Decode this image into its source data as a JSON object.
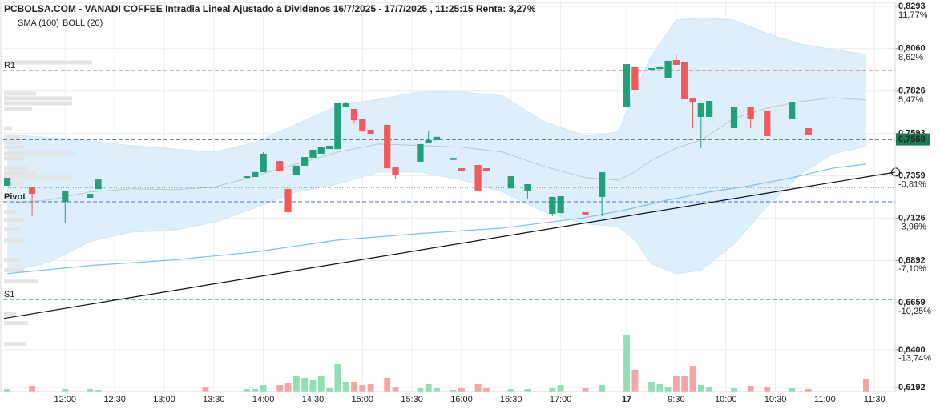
{
  "chart_data": {
    "type": "candlestick",
    "title": "PCBOLSA.COM - VANADI COFFEE Intradia Lineal Ajustado a Dividenos 16/7/2025 - 17/7/2025 , 11:25:15 Renta: 3,27%",
    "categories": [
      null,
      null,
      null,
      null,
      null,
      null,
      null,
      "12:00",
      null,
      null,
      null,
      null,
      null,
      "12:30",
      null,
      null,
      null,
      null,
      null,
      "13:00",
      null,
      null,
      null,
      null,
      null,
      "13:30",
      null,
      null,
      null,
      null,
      null,
      "14:00",
      null,
      null,
      null,
      null,
      null,
      "14:30",
      null,
      null,
      null,
      null,
      null,
      "15:00",
      null,
      null,
      null,
      null,
      null,
      "15:30",
      null,
      null,
      null,
      null,
      null,
      "16:00",
      null,
      null,
      null,
      null,
      null,
      "16:30",
      null,
      null,
      null,
      null,
      null,
      "17:00",
      null,
      null,
      null,
      null,
      null,
      null,
      null,
      "17",
      null,
      null,
      null,
      null,
      null,
      "9:30",
      null,
      null,
      null,
      null,
      null,
      "10:00",
      null,
      null,
      null,
      null,
      null,
      "10:30",
      null,
      null,
      null,
      null,
      null,
      "11:00",
      null,
      null,
      null,
      null,
      null,
      "11:30",
      null,
      null
    ],
    "open": [
      0.7304,
      null,
      null,
      0.7295,
      null,
      null,
      null,
      0.7216,
      null,
      null,
      0.7238,
      0.7286,
      null,
      null,
      null,
      null,
      null,
      null,
      null,
      null,
      null,
      null,
      null,
      null,
      null,
      null,
      null,
      null,
      null,
      0.7348,
      0.7353,
      0.7379,
      null,
      0.7441,
      0.7287,
      0.7362,
      0.7415,
      0.7459,
      0.7481,
      0.7507,
      0.7507,
      0.7741,
      0.7728,
      0.7675,
      0.7613,
      null,
      0.764,
      0.7406,
      null,
      null,
      0.7437,
      0.7538,
      0.7556,
      null,
      0.7447,
      0.7401,
      null,
      0.7419,
      0.7401,
      null,
      null,
      0.729,
      null,
      0.7278,
      null,
      null,
      0.715,
      0.7154,
      null,
      null,
      0.7159,
      null,
      0.7243,
      null,
      null,
      0.7741,
      0.7958,
      null,
      0.7944,
      0.7948,
      0.79,
      0.7997,
      0.7988,
      0.7785,
      0.7684,
      0.7684,
      null,
      null,
      0.7622,
      null,
      0.7737,
      null,
      0.7719,
      null,
      null,
      0.7675,
      null,
      0.7622,
      null,
      null,
      null,
      null,
      null,
      null,
      null,
      null,
      null,
      null
    ],
    "high": [
      0.7348,
      null,
      null,
      0.7295,
      null,
      null,
      null,
      0.7278,
      null,
      null,
      0.726,
      0.7339,
      null,
      null,
      null,
      null,
      null,
      null,
      null,
      null,
      null,
      null,
      null,
      null,
      null,
      null,
      null,
      null,
      null,
      0.7357,
      0.738,
      0.749,
      null,
      0.7441,
      0.7287,
      0.7415,
      0.7463,
      0.7516,
      0.7516,
      0.7525,
      0.7759,
      0.7763,
      0.7728,
      0.7675,
      0.7613,
      null,
      0.764,
      0.7406,
      null,
      null,
      0.7534,
      0.7609,
      0.7574,
      null,
      0.7458,
      0.7401,
      null,
      0.7432,
      0.7401,
      null,
      null,
      0.7357,
      null,
      0.7313,
      null,
      null,
      0.7243,
      0.7247,
      null,
      null,
      0.7159,
      null,
      0.7379,
      null,
      null,
      0.7975,
      0.7958,
      null,
      0.7953,
      0.7958,
      0.7993,
      0.8028,
      0.7988,
      0.7785,
      0.7759,
      0.7772,
      null,
      null,
      0.7737,
      null,
      0.7737,
      null,
      0.7719,
      null,
      null,
      0.7763,
      null,
      0.7622,
      null,
      null,
      null,
      null,
      null,
      null,
      null,
      null,
      null,
      null
    ],
    "low": [
      0.7304,
      null,
      null,
      0.7137,
      null,
      null,
      null,
      0.7101,
      null,
      null,
      0.7238,
      0.7286,
      null,
      null,
      null,
      null,
      null,
      null,
      null,
      null,
      null,
      null,
      null,
      null,
      null,
      null,
      null,
      null,
      null,
      0.7348,
      0.7353,
      0.7379,
      null,
      0.7388,
      0.7159,
      0.7362,
      0.7415,
      0.7459,
      0.7481,
      0.7507,
      0.7507,
      0.7741,
      0.7653,
      0.7604,
      0.7591,
      null,
      0.7401,
      0.7344,
      null,
      null,
      0.7437,
      0.7538,
      0.7556,
      null,
      0.7447,
      0.7384,
      null,
      0.7278,
      0.7388,
      null,
      null,
      0.729,
      null,
      0.7234,
      null,
      null,
      0.7137,
      0.7154,
      null,
      null,
      0.7146,
      null,
      0.7137,
      null,
      null,
      0.7741,
      0.783,
      null,
      0.7944,
      0.7948,
      0.79,
      0.7971,
      0.7781,
      0.7622,
      0.7512,
      0.7684,
      null,
      null,
      0.7622,
      null,
      0.7622,
      null,
      0.7578,
      null,
      null,
      0.7675,
      null,
      0.7587,
      null,
      null,
      null,
      null,
      null,
      null,
      null,
      null,
      null,
      null
    ],
    "close": [
      0.7348,
      null,
      null,
      0.726,
      null,
      null,
      null,
      0.7278,
      null,
      null,
      0.726,
      0.7339,
      null,
      null,
      null,
      null,
      null,
      null,
      null,
      null,
      null,
      null,
      null,
      null,
      null,
      null,
      null,
      null,
      null,
      0.7357,
      0.738,
      0.7481,
      null,
      0.7388,
      0.7159,
      0.7415,
      0.7463,
      0.7503,
      0.7516,
      0.7525,
      0.7759,
      0.7759,
      0.7666,
      0.7604,
      0.7591,
      null,
      0.7401,
      0.7366,
      null,
      null,
      0.7534,
      0.7556,
      0.7574,
      null,
      0.7458,
      0.7384,
      null,
      0.7278,
      0.7388,
      null,
      null,
      0.7357,
      null,
      0.7313,
      null,
      null,
      0.7243,
      0.7247,
      null,
      null,
      0.7146,
      null,
      0.7379,
      null,
      null,
      0.7975,
      0.783,
      null,
      0.7953,
      0.7958,
      0.7993,
      0.7971,
      0.7781,
      0.7763,
      0.7759,
      0.7772,
      null,
      null,
      0.7737,
      null,
      0.7675,
      null,
      0.7578,
      null,
      null,
      0.7763,
      null,
      0.7587,
      null,
      null,
      null,
      null,
      null,
      null,
      null,
      null,
      null,
      null
    ],
    "volume": [
      3,
      null,
      null,
      7,
      null,
      null,
      null,
      3,
      null,
      null,
      3,
      2,
      null,
      null,
      null,
      null,
      null,
      null,
      null,
      null,
      null,
      null,
      null,
      null,
      6,
      null,
      null,
      null,
      null,
      3,
      3,
      8,
      null,
      8,
      11,
      19,
      17,
      14,
      19,
      4,
      34,
      12,
      12,
      8,
      10,
      null,
      17,
      6,
      null,
      null,
      5,
      10,
      5,
      null,
      2,
      4,
      null,
      10,
      4,
      null,
      null,
      3,
      null,
      3,
      null,
      null,
      4,
      8,
      null,
      null,
      5,
      null,
      8,
      null,
      null,
      71,
      27,
      null,
      12,
      10,
      6,
      20,
      20,
      32,
      8,
      6,
      null,
      null,
      5,
      null,
      7,
      null,
      6,
      null,
      null,
      4,
      null,
      3,
      null,
      null,
      null,
      null,
      null,
      null,
      16,
      null,
      null,
      null
    ],
    "up_color": "#22a07a",
    "down_color": "#f05a5a",
    "volume_up_color": "#8fe0b4",
    "volume_down_color": "#f5a5a5",
    "ylim": [
      0.6192,
      0.8293
    ],
    "yticks": [
      {
        "value": 0.8293,
        "label": "0,8293"
      },
      {
        "value": 0.806,
        "label": "0,8060"
      },
      {
        "value": 0.7826,
        "label": "0,7826"
      },
      {
        "value": 0.7593,
        "label": "0,7593"
      },
      {
        "value": 0.7359,
        "label": "0,7359"
      },
      {
        "value": 0.7126,
        "label": "0,7126"
      },
      {
        "value": 0.6892,
        "label": "0,6892"
      },
      {
        "value": 0.6659,
        "label": "0,6659"
      },
      {
        "value": 0.64,
        "label": "0,6400"
      },
      {
        "value": 0.6192,
        "label": "0,6192"
      }
    ],
    "y2lim": [
      -16.55,
      11.77
    ],
    "y2ticks": [
      {
        "value": 11.77,
        "label": "11,77%"
      },
      {
        "value": 8.62,
        "label": "8,62%"
      },
      {
        "value": 5.47,
        "label": "5,47%"
      },
      {
        "value": -0.81,
        "label": "-0,81%"
      },
      {
        "value": -3.96,
        "label": "-3,96%"
      },
      {
        "value": -7.1,
        "label": "-7,10%"
      },
      {
        "value": -10.25,
        "label": "-10,25%"
      },
      {
        "value": -13.74,
        "label": "-13,74%"
      }
    ],
    "grid": true,
    "sma": {
      "name": "SMA (100)",
      "color": "#7fc4ee",
      "x": [
        0,
        10,
        20,
        30,
        40,
        50,
        60,
        70,
        75,
        80,
        85,
        90,
        95,
        100,
        104
      ],
      "values": [
        0.682,
        0.6864,
        0.6895,
        0.6939,
        0.7005,
        0.7041,
        0.7071,
        0.7129,
        0.7173,
        0.7226,
        0.727,
        0.7305,
        0.7349,
        0.7402,
        0.7424
      ]
    },
    "boll": {
      "name": "BOLL (20)",
      "color": "#c4c4c4",
      "fill": "#dceffb",
      "x": [
        0,
        5,
        10,
        15,
        20,
        25,
        30,
        35,
        40,
        45,
        50,
        55,
        60,
        65,
        70,
        74,
        76,
        78,
        81,
        84,
        88,
        92,
        96,
        100,
        104
      ],
      "upper": [
        0.7587,
        0.757,
        0.7552,
        0.7526,
        0.7508,
        0.749,
        0.7543,
        0.7645,
        0.7746,
        0.7781,
        0.7821,
        0.7821,
        0.7799,
        0.7658,
        0.7579,
        0.7601,
        0.7834,
        0.802,
        0.8218,
        0.8231,
        0.8218,
        0.8143,
        0.8086,
        0.8055,
        0.8028
      ],
      "middle": [
        0.7208,
        0.7226,
        0.727,
        0.7288,
        0.7283,
        0.7296,
        0.7358,
        0.7424,
        0.749,
        0.7535,
        0.7526,
        0.7517,
        0.749,
        0.7411,
        0.7349,
        0.7336,
        0.738,
        0.7446,
        0.7512,
        0.7557,
        0.7676,
        0.7733,
        0.7768,
        0.779,
        0.7777
      ],
      "lower": [
        0.6829,
        0.6882,
        0.6997,
        0.7049,
        0.7058,
        0.7102,
        0.7182,
        0.727,
        0.7314,
        0.738,
        0.738,
        0.7336,
        0.727,
        0.716,
        0.7094,
        0.708,
        0.7005,
        0.6873,
        0.682,
        0.6838,
        0.6983,
        0.7191,
        0.7367,
        0.7482,
        0.7521
      ]
    },
    "levels": [
      {
        "label": "R1",
        "value": 0.794,
        "color": "#e05050"
      },
      {
        "label": "Pivot",
        "value": 0.7216,
        "color": "#3a7bd5"
      },
      {
        "label": "S1",
        "value": 0.6677,
        "color": "#2a9d6a"
      }
    ],
    "prev_close": 0.7296,
    "last_price": {
      "value": 0.756,
      "label": "0,7560",
      "color": "#1b7a55"
    },
    "trend_line": {
      "x": [
        -0.4,
        107.56
      ],
      "values": [
        0.6573,
        0.738
      ]
    },
    "volume_profile": {
      "color": "#e4e4e4",
      "prices": [
        0.7984,
        0.7812,
        0.7786,
        0.7759,
        0.7728,
        0.7623,
        0.757,
        0.7543,
        0.7517,
        0.7482,
        0.7455,
        0.7402,
        0.7376,
        0.7349,
        0.7318,
        0.7243,
        0.716,
        0.7116,
        0.7063,
        0.7005,
        0.6895,
        0.6838,
        0.6776,
        0.66,
        0.6547,
        0.6432
      ],
      "values": [
        110,
        40,
        85,
        85,
        35,
        10,
        20,
        22,
        25,
        90,
        25,
        30,
        40,
        85,
        25,
        15,
        15,
        25,
        20,
        25,
        20,
        25,
        42,
        15,
        30,
        28
      ]
    }
  }
}
